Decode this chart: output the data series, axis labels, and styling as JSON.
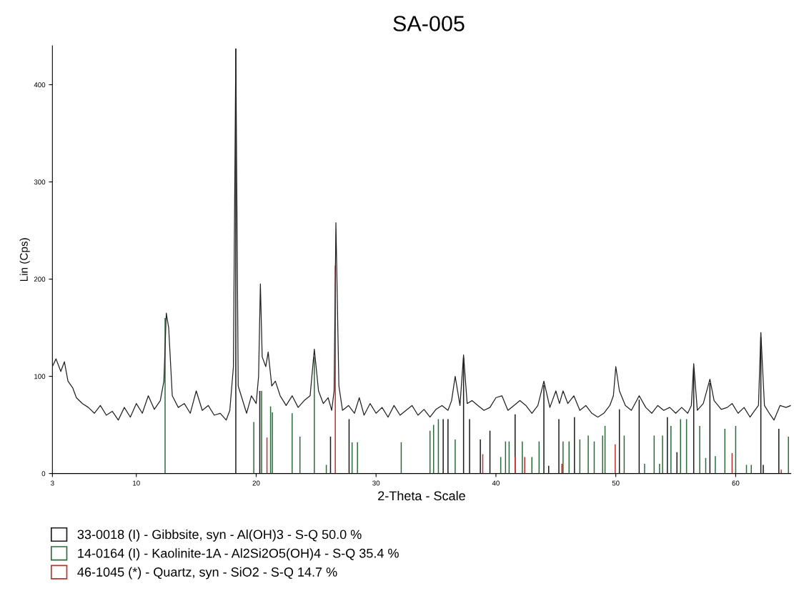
{
  "chart_data": {
    "type": "line",
    "title": "SA-005",
    "xlabel": "2-Theta - Scale",
    "ylabel": "Lin (Cps)",
    "xlim": [
      3,
      64.6
    ],
    "ylim": [
      0,
      440
    ],
    "xticks": [
      3,
      10,
      20,
      30,
      40,
      50,
      60
    ],
    "yticks": [
      0,
      100,
      200,
      300,
      400
    ],
    "grid": false,
    "legend": "bottom",
    "marker": "none",
    "line_style": "solid",
    "series": [
      {
        "color": "#222222",
        "x": [
          3,
          3.3,
          3.7,
          4.0,
          4.3,
          4.7,
          5.0,
          5.5,
          6.0,
          6.5,
          7,
          7.5,
          8,
          8.5,
          9,
          9.5,
          10,
          10.5,
          11,
          11.5,
          12,
          12.3,
          12.5,
          12.7,
          13,
          13.5,
          14,
          14.5,
          15,
          15.5,
          16,
          16.5,
          17,
          17.5,
          17.8,
          18.1,
          18.3,
          18.5,
          18.8,
          19.2,
          19.6,
          20,
          20.2,
          20.35,
          20.5,
          20.8,
          21,
          21.3,
          21.6,
          22,
          22.5,
          23,
          23.5,
          24,
          24.5,
          24.85,
          25.2,
          25.6,
          26,
          26.3,
          26.5,
          26.65,
          26.9,
          27.2,
          27.7,
          28.2,
          28.6,
          29,
          29.5,
          30,
          30.5,
          31,
          31.5,
          32,
          32.5,
          33,
          33.5,
          34,
          34.5,
          35,
          35.5,
          36,
          36.3,
          36.6,
          37.0,
          37.3,
          37.6,
          38.0,
          38.5,
          39.0,
          39.5,
          40.0,
          40.5,
          41,
          41.5,
          42,
          42.5,
          43,
          43.5,
          44.0,
          44.5,
          45,
          45.3,
          45.6,
          46,
          46.5,
          47,
          47.5,
          48,
          48.5,
          49,
          49.5,
          49.8,
          50.0,
          50.3,
          50.8,
          51.3,
          51.95,
          52.5,
          53,
          53.5,
          54,
          54.5,
          55,
          55.5,
          56,
          56.3,
          56.5,
          56.8,
          57.3,
          57.85,
          58.2,
          58.8,
          59.3,
          59.7,
          60.2,
          60.7,
          61.2,
          61.6,
          61.9,
          62.1,
          62.4,
          62.8,
          63.2,
          63.7,
          64.2,
          64.6
        ],
        "values": [
          110,
          118,
          105,
          115,
          95,
          88,
          78,
          72,
          68,
          62,
          70,
          60,
          64,
          55,
          68,
          58,
          72,
          62,
          80,
          66,
          75,
          95,
          165,
          150,
          80,
          68,
          72,
          62,
          85,
          65,
          70,
          60,
          62,
          55,
          65,
          110,
          437,
          90,
          78,
          62,
          80,
          72,
          100,
          195,
          120,
          110,
          125,
          90,
          95,
          80,
          70,
          80,
          68,
          75,
          80,
          128,
          85,
          72,
          78,
          65,
          85,
          258,
          90,
          65,
          70,
          62,
          78,
          60,
          72,
          62,
          68,
          58,
          70,
          60,
          65,
          70,
          60,
          66,
          58,
          66,
          70,
          65,
          75,
          100,
          70,
          122,
          72,
          75,
          70,
          65,
          68,
          78,
          80,
          65,
          70,
          75,
          70,
          62,
          70,
          95,
          68,
          85,
          72,
          85,
          72,
          80,
          65,
          70,
          62,
          58,
          62,
          70,
          80,
          110,
          85,
          70,
          65,
          80,
          68,
          62,
          70,
          65,
          68,
          62,
          68,
          62,
          70,
          113,
          65,
          72,
          97,
          75,
          66,
          68,
          72,
          62,
          68,
          58,
          65,
          70,
          145,
          70,
          62,
          55,
          70,
          68,
          70
        ]
      },
      {
        "type": "bar",
        "name": "33-0018 (I) - Gibbsite, syn - Al(OH)3 - S-Q 50.0 %",
        "color": "#1a1a1a",
        "x": [
          18.3,
          20.3,
          26.2,
          27.75,
          35.6,
          36.0,
          37.3,
          37.8,
          38.7,
          39.5,
          41.6,
          44.0,
          44.4,
          45.25,
          46.55,
          50.3,
          51.95,
          54.3,
          55.1,
          56.5,
          57.85,
          62.1,
          62.3,
          63.6
        ],
        "values": [
          437,
          85,
          38,
          56,
          56,
          56,
          119,
          56,
          35,
          44,
          61,
          91,
          8,
          56,
          58,
          66,
          76,
          58,
          22,
          108,
          93,
          140,
          9,
          46
        ]
      },
      {
        "type": "bar",
        "name": "14-0164 (I) - Kaolinite-1A - Al2Si2O5(OH)4 - S-Q 35.4 %",
        "color": "#2e6b3a",
        "x": [
          12.4,
          19.8,
          20.45,
          21.2,
          21.35,
          23.0,
          23.65,
          24.85,
          25.85,
          28.0,
          28.45,
          32.1,
          34.5,
          34.8,
          35.2,
          36.6,
          40.4,
          40.8,
          41.1,
          42.2,
          43.0,
          43.6,
          45.6,
          46.1,
          47.0,
          47.7,
          48.2,
          48.9,
          49.1,
          50.7,
          52.4,
          53.2,
          53.65,
          53.9,
          54.6,
          55.4,
          55.9,
          57.0,
          57.5,
          58.3,
          59.1,
          60.0,
          60.9,
          61.3,
          64.4
        ],
        "values": [
          160,
          53,
          85,
          69,
          63,
          62,
          38,
          120,
          9,
          32,
          32,
          32,
          44,
          50,
          56,
          35,
          17,
          33,
          33,
          33,
          17,
          33,
          33,
          33,
          35,
          39,
          33,
          39,
          49,
          39,
          10,
          39,
          10,
          39,
          49,
          56,
          56,
          49,
          16,
          18,
          46,
          49,
          9,
          9,
          38
        ]
      },
      {
        "type": "bar",
        "name": "46-1045 (*) - Quartz, syn - SiO2 - S-Q 14.7 %",
        "color": "#c0302e",
        "x": [
          20.9,
          26.6,
          38.9,
          41.6,
          42.4,
          45.5,
          49.95,
          59.7,
          63.8
        ],
        "values": [
          37,
          214,
          20,
          17,
          17,
          10,
          30,
          21,
          4
        ]
      }
    ]
  }
}
